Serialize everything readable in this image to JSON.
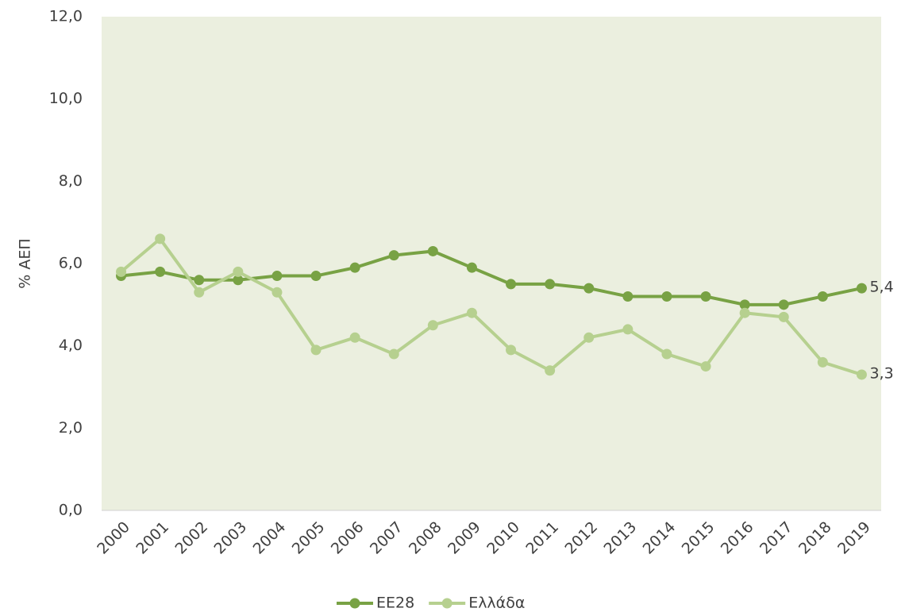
{
  "chart_data": {
    "type": "line",
    "y_label": "% ΑΕΠ",
    "categories": [
      "2000",
      "2001",
      "2002",
      "2003",
      "2004",
      "2005",
      "2006",
      "2007",
      "2008",
      "2009",
      "2010",
      "2011",
      "2012",
      "2013",
      "2014",
      "2015",
      "2016",
      "2017",
      "2018",
      "2019"
    ],
    "series": [
      {
        "name": "ΕΕ28",
        "color": "#78a244",
        "values": [
          5.7,
          5.8,
          5.6,
          5.6,
          5.7,
          5.7,
          5.9,
          6.2,
          6.3,
          5.9,
          5.5,
          5.5,
          5.4,
          5.2,
          5.2,
          5.2,
          5.0,
          5.0,
          5.2,
          5.4
        ],
        "value_labels": [
          null,
          null,
          null,
          null,
          null,
          null,
          null,
          null,
          null,
          null,
          null,
          null,
          null,
          null,
          null,
          null,
          null,
          null,
          null,
          "5,4"
        ]
      },
      {
        "name": "Ελλάδα",
        "color": "#b6d08f",
        "values": [
          5.8,
          6.6,
          5.3,
          5.8,
          5.3,
          3.9,
          4.2,
          3.8,
          4.5,
          4.8,
          3.9,
          3.4,
          4.2,
          4.4,
          3.8,
          3.5,
          4.8,
          4.7,
          3.6,
          3.3
        ],
        "value_labels": [
          null,
          null,
          null,
          null,
          null,
          null,
          null,
          null,
          null,
          null,
          null,
          null,
          null,
          null,
          null,
          null,
          null,
          null,
          null,
          "3,3"
        ]
      }
    ],
    "ylim": [
      0,
      12
    ],
    "yticks": [
      {
        "value": 0,
        "label": "0,0"
      },
      {
        "value": 2,
        "label": "2,0"
      },
      {
        "value": 4,
        "label": "4,0"
      },
      {
        "value": 6,
        "label": "6,0"
      },
      {
        "value": 8,
        "label": "8,0"
      },
      {
        "value": 10,
        "label": "10,0"
      },
      {
        "value": 12,
        "label": "12,0"
      }
    ],
    "plot_background": "#ebefdf",
    "legend": "bottom"
  }
}
